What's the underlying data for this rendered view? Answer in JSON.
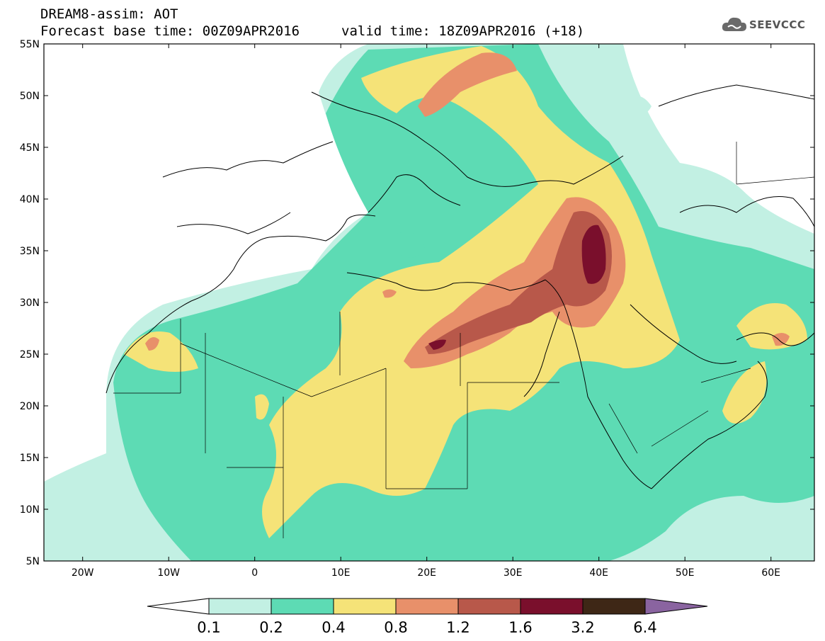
{
  "title": {
    "line1": "DREAM8-assim: AOT",
    "line2": "Forecast base time: 00Z09APR2016",
    "valid": "valid time: 18Z09APR2016 (+18)"
  },
  "logo": {
    "text": "SEEVCCC",
    "icon": "cloud-icon"
  },
  "axes": {
    "lat_labels": [
      "55N",
      "50N",
      "45N",
      "40N",
      "35N",
      "30N",
      "25N",
      "20N",
      "15N",
      "10N",
      "5N"
    ],
    "lon_labels": [
      "20W",
      "10W",
      "0",
      "10E",
      "20E",
      "30E",
      "40E",
      "50E",
      "60E"
    ]
  },
  "colorbar": {
    "labels": [
      "0.1",
      "0.2",
      "0.4",
      "0.8",
      "1.2",
      "1.6",
      "3.2",
      "6.4"
    ],
    "colors": [
      "#ffffff",
      "#c2f0e3",
      "#5ddbb4",
      "#f5e378",
      "#e8906a",
      "#b8584a",
      "#7a0f2c",
      "#3e2716",
      "#8a64a0"
    ]
  },
  "colors": {
    "band_0_1": "#c2f0e3",
    "band_0_2": "#5ddbb4",
    "band_0_4": "#f5e378",
    "band_0_8": "#e8906a",
    "band_1_2": "#b8584a",
    "band_1_6": "#7a0f2c"
  }
}
